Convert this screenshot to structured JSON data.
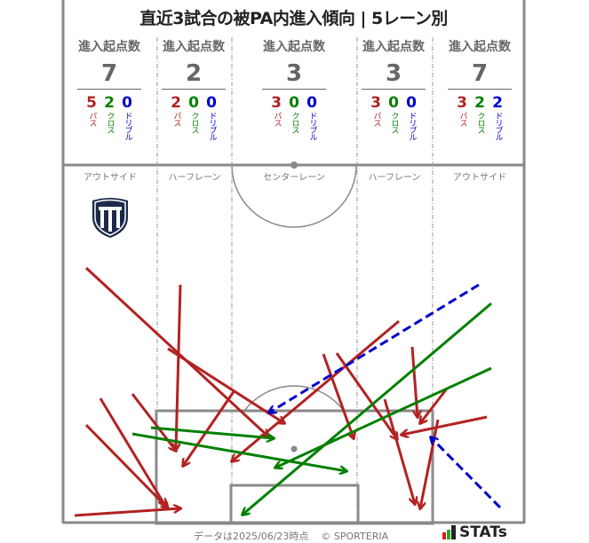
{
  "title": "直近3試合の被PA内進入傾向 | 5レーン別",
  "colors": {
    "pass": "#b22222",
    "cross": "#008000",
    "dribble": "#0000cc",
    "line": "#888888"
  },
  "chart_data": {
    "type": "pitch-arrows",
    "header_label": "進入起点数",
    "type_labels": {
      "pass": "パス",
      "cross": "クロス",
      "dribble": "ドリブル"
    },
    "lanes": [
      {
        "name": "アウトサイド",
        "total": "7",
        "pass": "5",
        "cross": "2",
        "dribble": "0"
      },
      {
        "name": "ハーフレーン",
        "total": "2",
        "pass": "2",
        "cross": "0",
        "dribble": "0"
      },
      {
        "name": "センターレーン",
        "total": "3",
        "pass": "3",
        "cross": "0",
        "dribble": "0"
      },
      {
        "name": "ハーフレーン",
        "total": "3",
        "pass": "3",
        "cross": "0",
        "dribble": "0"
      },
      {
        "name": "アウトサイド",
        "total": "7",
        "pass": "3",
        "cross": "2",
        "dribble": "2"
      }
    ]
  },
  "footer": {
    "note": "データは2025/06/23時点",
    "copyright": "© SPORTERIA",
    "brand": "STATs"
  },
  "logo": {
    "icon": "team-crest-shield"
  }
}
